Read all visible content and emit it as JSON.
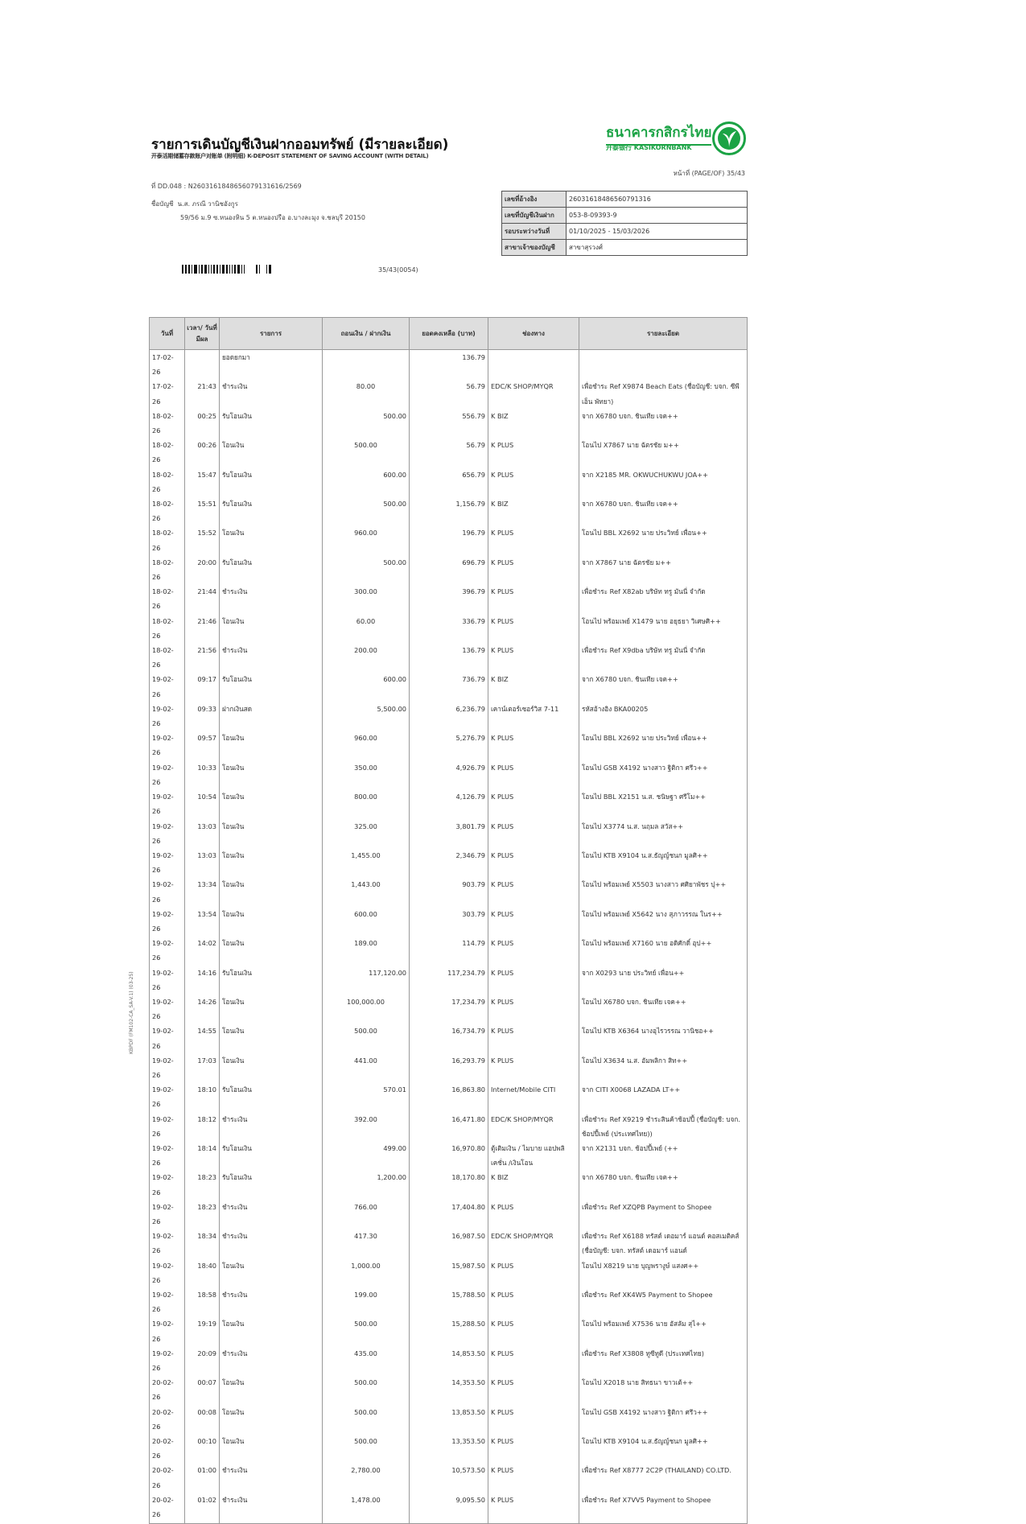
{
  "header": {
    "title": "รายการเดินบัญชีเงินฝากออมทรัพย์ (มีรายละเอียด)",
    "subtitle": "开泰活期储蓄存款账户对账单 (附明细) K-DEPOSIT STATEMENT OF SAVING ACCOUNT (WITH DETAIL)",
    "bank_name_th": "ธนาคารกสิกรไทย",
    "bank_name_en": "开泰银行 KASIKORNBANK",
    "brand_color": "#1ba345",
    "page": "หน้าที่ (PAGE/OF) 35/43"
  },
  "document": {
    "ref_line": "ที่ DD.048 : N2603161848656079131616/2569",
    "account_name_label": "ชื่อบัญชี",
    "account_name": "น.ส. ภรณี วานิชอังกูร",
    "address": "59/56 ม.9 ซ.หนองหิน 5 ต.หนองปรือ อ.บางละมุง จ.ชลบุรี 20150",
    "barcode_number": "35/43(0054)",
    "side_code": "KBPDF (FM102-CA_SA-V.1) (03-25)"
  },
  "info": [
    {
      "label": "เลขที่อ้างอิง",
      "value": "26031618486560791316"
    },
    {
      "label": "เลขที่บัญชีเงินฝาก",
      "value": "053-8-09393-9"
    },
    {
      "label": "รอบระหว่างวันที่",
      "value": "01/10/2025 - 15/03/2026"
    },
    {
      "label": "สาขาเจ้าของบัญชี",
      "value": "สาขาสุรวงศ์"
    }
  ],
  "table": {
    "headers": [
      "วันที่",
      "เวลา/ วันที่มีผล",
      "รายการ",
      "ถอนเงิน / ฝากเงิน",
      "ยอดคงเหลือ (บาท)",
      "ช่องทาง",
      "รายละเอียด"
    ],
    "rows": [
      {
        "date": "17-02-26",
        "time": "",
        "desc": "ยอดยกมา",
        "amount": "",
        "type": "",
        "balance": "136.79",
        "channel": "",
        "detail": ""
      },
      {
        "date": "17-02-26",
        "time": "21:43",
        "desc": "ชำระเงิน",
        "amount": "80.00",
        "type": "w",
        "balance": "56.79",
        "channel": "EDC/K SHOP/MYQR",
        "detail": "เพื่อชำระ Ref X9874 Beach Eats (ชื่อบัญชี: บจก. ซีพีเอ็น พัทยา)"
      },
      {
        "date": "18-02-26",
        "time": "00:25",
        "desc": "รับโอนเงิน",
        "amount": "500.00",
        "type": "d",
        "balance": "556.79",
        "channel": "K BIZ",
        "detail": "จาก X6780 บจก. ชินเทีย เจค++"
      },
      {
        "date": "18-02-26",
        "time": "00:26",
        "desc": "โอนเงิน",
        "amount": "500.00",
        "type": "w",
        "balance": "56.79",
        "channel": "K PLUS",
        "detail": "โอนไป X7867 นาย ฉัตรชัย ม++"
      },
      {
        "date": "18-02-26",
        "time": "15:47",
        "desc": "รับโอนเงิน",
        "amount": "600.00",
        "type": "d",
        "balance": "656.79",
        "channel": "K PLUS",
        "detail": "จาก X2185 MR. OKWUCHUKWU JOA++"
      },
      {
        "date": "18-02-26",
        "time": "15:51",
        "desc": "รับโอนเงิน",
        "amount": "500.00",
        "type": "d",
        "balance": "1,156.79",
        "channel": "K BIZ",
        "detail": "จาก X6780 บจก. ชินเทีย เจค++"
      },
      {
        "date": "18-02-26",
        "time": "15:52",
        "desc": "โอนเงิน",
        "amount": "960.00",
        "type": "w",
        "balance": "196.79",
        "channel": "K PLUS",
        "detail": "โอนไป BBL X2692 นาย ประวิทย์ เพื่อน++"
      },
      {
        "date": "18-02-26",
        "time": "20:00",
        "desc": "รับโอนเงิน",
        "amount": "500.00",
        "type": "d",
        "balance": "696.79",
        "channel": "K PLUS",
        "detail": "จาก X7867 นาย ฉัตรชัย ม++"
      },
      {
        "date": "18-02-26",
        "time": "21:44",
        "desc": "ชำระเงิน",
        "amount": "300.00",
        "type": "w",
        "balance": "396.79",
        "channel": "K PLUS",
        "detail": "เพื่อชำระ Ref X82ab บริษัท ทรู มันนี่ จำกัด"
      },
      {
        "date": "18-02-26",
        "time": "21:46",
        "desc": "โอนเงิน",
        "amount": "60.00",
        "type": "w",
        "balance": "336.79",
        "channel": "K PLUS",
        "detail": "โอนไป พร้อมเพย์ X1479 นาย อยุธยา วิเศษศิ++"
      },
      {
        "date": "18-02-26",
        "time": "21:56",
        "desc": "ชำระเงิน",
        "amount": "200.00",
        "type": "w",
        "balance": "136.79",
        "channel": "K PLUS",
        "detail": "เพื่อชำระ Ref X9dba บริษัท ทรู มันนี่ จำกัด"
      },
      {
        "date": "19-02-26",
        "time": "09:17",
        "desc": "รับโอนเงิน",
        "amount": "600.00",
        "type": "d",
        "balance": "736.79",
        "channel": "K BIZ",
        "detail": "จาก X6780 บจก. ชินเทีย เจค++"
      },
      {
        "date": "19-02-26",
        "time": "09:33",
        "desc": "ฝากเงินสด",
        "amount": "5,500.00",
        "type": "d",
        "balance": "6,236.79",
        "channel": "เคาน์เตอร์เซอร์วิส 7-11",
        "detail": "รหัสอ้างอิง BKA00205"
      },
      {
        "date": "19-02-26",
        "time": "09:57",
        "desc": "โอนเงิน",
        "amount": "960.00",
        "type": "w",
        "balance": "5,276.79",
        "channel": "K PLUS",
        "detail": "โอนไป BBL X2692 นาย ประวิทย์ เพื่อน++"
      },
      {
        "date": "19-02-26",
        "time": "10:33",
        "desc": "โอนเงิน",
        "amount": "350.00",
        "type": "w",
        "balance": "4,926.79",
        "channel": "K PLUS",
        "detail": "โอนไป GSB X4192 นางสาว ฐิติกา ศรีว++"
      },
      {
        "date": "19-02-26",
        "time": "10:54",
        "desc": "โอนเงิน",
        "amount": "800.00",
        "type": "w",
        "balance": "4,126.79",
        "channel": "K PLUS",
        "detail": "โอนไป BBL X2151 น.ส. ชนิษฐา ศรีโม++"
      },
      {
        "date": "19-02-26",
        "time": "13:03",
        "desc": "โอนเงิน",
        "amount": "325.00",
        "type": "w",
        "balance": "3,801.79",
        "channel": "K PLUS",
        "detail": "โอนไป X3774 น.ส. นฤมล สวัส++"
      },
      {
        "date": "19-02-26",
        "time": "13:03",
        "desc": "โอนเงิน",
        "amount": "1,455.00",
        "type": "w",
        "balance": "2,346.79",
        "channel": "K PLUS",
        "detail": "โอนไป KTB X9104 น.ส.ธัญญ์ชนก มูลศิ++"
      },
      {
        "date": "19-02-26",
        "time": "13:34",
        "desc": "โอนเงิน",
        "amount": "1,443.00",
        "type": "w",
        "balance": "903.79",
        "channel": "K PLUS",
        "detail": "โอนไป พร้อมเพย์ X5503 นางสาว ศศิยาพัชร ปุ++"
      },
      {
        "date": "19-02-26",
        "time": "13:54",
        "desc": "โอนเงิน",
        "amount": "600.00",
        "type": "w",
        "balance": "303.79",
        "channel": "K PLUS",
        "detail": "โอนไป พร้อมเพย์ X5642 นาง สุภาวรรณ ในร++"
      },
      {
        "date": "19-02-26",
        "time": "14:02",
        "desc": "โอนเงิน",
        "amount": "189.00",
        "type": "w",
        "balance": "114.79",
        "channel": "K PLUS",
        "detail": "โอนไป พร้อมเพย์ X7160 นาย อดิศักดิ์ อุป++"
      },
      {
        "date": "19-02-26",
        "time": "14:16",
        "desc": "รับโอนเงิน",
        "amount": "117,120.00",
        "type": "d",
        "balance": "117,234.79",
        "channel": "K PLUS",
        "detail": "จาก X0293 นาย ประวิทย์ เพื่อน++"
      },
      {
        "date": "19-02-26",
        "time": "14:26",
        "desc": "โอนเงิน",
        "amount": "100,000.00",
        "type": "w",
        "balance": "17,234.79",
        "channel": "K PLUS",
        "detail": "โอนไป X6780 บจก. ชินเทีย เจค++"
      },
      {
        "date": "19-02-26",
        "time": "14:55",
        "desc": "โอนเงิน",
        "amount": "500.00",
        "type": "w",
        "balance": "16,734.79",
        "channel": "K PLUS",
        "detail": "โอนไป KTB X6364 นางอุไรวรรณ วานิชอ++"
      },
      {
        "date": "19-02-26",
        "time": "17:03",
        "desc": "โอนเงิน",
        "amount": "441.00",
        "type": "w",
        "balance": "16,293.79",
        "channel": "K PLUS",
        "detail": "โอนไป X3634 น.ส. อัมพลิกา สิท++"
      },
      {
        "date": "19-02-26",
        "time": "18:10",
        "desc": "รับโอนเงิน",
        "amount": "570.01",
        "type": "d",
        "balance": "16,863.80",
        "channel": "Internet/Mobile CITI",
        "detail": "จาก CITI X0068 LAZADA LT++"
      },
      {
        "date": "19-02-26",
        "time": "18:12",
        "desc": "ชำระเงิน",
        "amount": "392.00",
        "type": "w",
        "balance": "16,471.80",
        "channel": "EDC/K SHOP/MYQR",
        "detail": "เพื่อชำระ Ref X9219 ชำระสินค้าช้อปปี้ (ชื่อบัญชี: บจก. ช้อปปี้เพย์ (ประเทศไทย))"
      },
      {
        "date": "19-02-26",
        "time": "18:14",
        "desc": "รับโอนเงิน",
        "amount": "499.00",
        "type": "d",
        "balance": "16,970.80",
        "channel": "ตู้เติมเงิน / ไมบาย แอปพลิเคชั่น /เงินโอน",
        "detail": "จาก X2131 บจก. ช้อปปี้เพย์ (++"
      },
      {
        "date": "19-02-26",
        "time": "18:23",
        "desc": "รับโอนเงิน",
        "amount": "1,200.00",
        "type": "d",
        "balance": "18,170.80",
        "channel": "K BIZ",
        "detail": "จาก X6780 บจก. ชินเทีย เจค++"
      },
      {
        "date": "19-02-26",
        "time": "18:23",
        "desc": "ชำระเงิน",
        "amount": "766.00",
        "type": "w",
        "balance": "17,404.80",
        "channel": "K PLUS",
        "detail": "เพื่อชำระ Ref XZQPB Payment to Shopee"
      },
      {
        "date": "19-02-26",
        "time": "18:34",
        "desc": "ชำระเงิน",
        "amount": "417.30",
        "type": "w",
        "balance": "16,987.50",
        "channel": "EDC/K SHOP/MYQR",
        "detail": "เพื่อชำระ Ref X6188 ทรัสต์ เดอมาร์ แอนด์ คอสเมติคส์ (ชื่อบัญชี: บจก. ทรัสต์ เดอมาร์ แอนด์"
      },
      {
        "date": "19-02-26",
        "time": "18:40",
        "desc": "โอนเงิน",
        "amount": "1,000.00",
        "type": "w",
        "balance": "15,987.50",
        "channel": "K PLUS",
        "detail": "โอนไป X8219 นาย บุญพรางูษ์ แสงศ++"
      },
      {
        "date": "19-02-26",
        "time": "18:58",
        "desc": "ชำระเงิน",
        "amount": "199.00",
        "type": "w",
        "balance": "15,788.50",
        "channel": "K PLUS",
        "detail": "เพื่อชำระ Ref XK4W5 Payment to Shopee"
      },
      {
        "date": "19-02-26",
        "time": "19:19",
        "desc": "โอนเงิน",
        "amount": "500.00",
        "type": "w",
        "balance": "15,288.50",
        "channel": "K PLUS",
        "detail": "โอนไป พร้อมเพย์ X7536 นาย อัสลัม สุไ++"
      },
      {
        "date": "19-02-26",
        "time": "20:09",
        "desc": "ชำระเงิน",
        "amount": "435.00",
        "type": "w",
        "balance": "14,853.50",
        "channel": "K PLUS",
        "detail": "เพื่อชำระ Ref X3808 ทูซีทูดี (ประเทศไทย)"
      },
      {
        "date": "20-02-26",
        "time": "00:07",
        "desc": "โอนเงิน",
        "amount": "500.00",
        "type": "w",
        "balance": "14,353.50",
        "channel": "K PLUS",
        "detail": "โอนไป X2018 นาย สิทธนา ขาวเต้++"
      },
      {
        "date": "20-02-26",
        "time": "00:08",
        "desc": "โอนเงิน",
        "amount": "500.00",
        "type": "w",
        "balance": "13,853.50",
        "channel": "K PLUS",
        "detail": "โอนไป GSB X4192 นางสาว ฐิติกา ศรีว++"
      },
      {
        "date": "20-02-26",
        "time": "00:10",
        "desc": "โอนเงิน",
        "amount": "500.00",
        "type": "w",
        "balance": "13,353.50",
        "channel": "K PLUS",
        "detail": "โอนไป KTB X9104 น.ส.ธัญญ์ชนก มูลศิ++"
      },
      {
        "date": "20-02-26",
        "time": "01:00",
        "desc": "ชำระเงิน",
        "amount": "2,780.00",
        "type": "w",
        "balance": "10,573.50",
        "channel": "K PLUS",
        "detail": "เพื่อชำระ Ref X8777 2C2P (THAILAND) CO.LTD."
      },
      {
        "date": "20-02-26",
        "time": "01:02",
        "desc": "ชำระเงิน",
        "amount": "1,478.00",
        "type": "w",
        "balance": "9,095.50",
        "channel": "K PLUS",
        "detail": "เพื่อชำระ Ref X7VV5 Payment to Shopee"
      }
    ]
  }
}
